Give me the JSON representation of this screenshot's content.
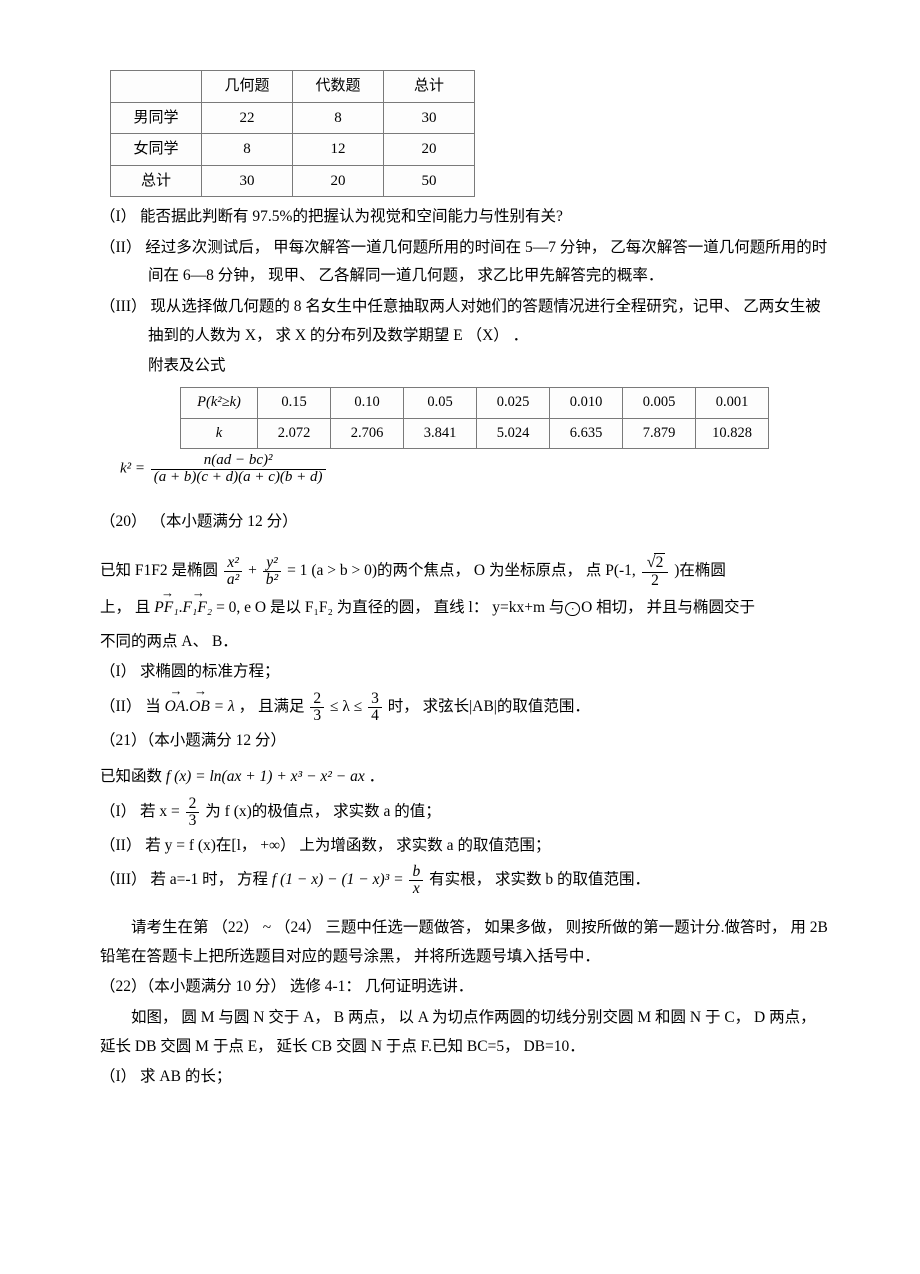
{
  "table1": {
    "headers": [
      "",
      "几何题",
      "代数题",
      "总计"
    ],
    "rows": [
      [
        "男同学",
        "22",
        "8",
        "30"
      ],
      [
        "女同学",
        "8",
        "12",
        "20"
      ],
      [
        "总计",
        "30",
        "20",
        "50"
      ]
    ]
  },
  "q_I": "（I）  能否据此判断有 97.5%的把握认为视觉和空间能力与性别有关?",
  "q_II": "（II）  经过多次测试后，  甲每次解答一道几何题所用的时间在 5—7 分钟，  乙每次解答一道几何题所用的时间在 6—8 分钟，  现甲、  乙各解同一道几何题，  求乙比甲先解答完的概率．",
  "q_III": "（III）  现从选择做几何题的 8 名女生中任意抽取两人对她们的答题情况进行全程研究，记甲、  乙两女生被抽到的人数为 X，  求 X 的分布列及数学期望 E  （X）  ．",
  "appendix_label": "附表及公式",
  "table2": {
    "row1_label": "P(k²≥k)",
    "row1": [
      "0.15",
      "0.10",
      "0.05",
      "0.025",
      "0.010",
      "0.005",
      "0.001"
    ],
    "row2_label": "k",
    "row2": [
      "2.072",
      "2.706",
      "3.841",
      "5.024",
      "6.635",
      "7.879",
      "10.828"
    ]
  },
  "k2_left": "k² =",
  "k2_num": "n(ad − bc)²",
  "k2_den": "(a + b)(c + d)(a + c)(b + d)",
  "q20_head": "（20）  （本小题满分 12 分）",
  "q20_l1_a": "已知 F1F2 是椭圆",
  "q20_l1_b": "(a > b > 0)的两个焦点，  O 为坐标原点，  点  P(-1,",
  "q20_l1_c": ")在椭圆",
  "q20_l2_a": "上，  且",
  "q20_l2_b": "= 0, e O 是以 F₁F₂ 为直径的圆，  直线 l：  y=kx+m 与",
  "q20_l2_b2": "O 相切，  并且与椭圆交于",
  "q20_l2_c": "不同的两点 A、  B．",
  "q20_I": "（I）  求椭圆的标准方程；",
  "q20_II_a": "（II）  当 ",
  "q20_II_b": "，  且满足",
  "q20_II_c": "时，  求弦长|AB|的取值范围．",
  "q21_head": "（21）（本小题满分 12 分）",
  "q21_l1_a": "已知函数 ",
  "q21_l1_b": " ．",
  "q21_fx": "f (x) = ln(ax + 1) + x³ − x² − ax",
  "q21_I_a": "（I）  若  x = ",
  "q21_I_b": "为  f (x)的极值点，  求实数 a 的值；",
  "q21_II": "（II）  若  y = f (x)在[l，  +∞）  上为增函数，  求实数 a 的取值范围；",
  "q21_III_a": "（III）  若 a=-1 时，  方程 ",
  "q21_III_mid": "f (1 − x) − (1 − x)³ =",
  "q21_III_b": "有实根，  求实数 b 的取值范围．",
  "post_a": "请考生在第  （22）  ~  （24）  三题中任选一题做答，  如果多做，  则按所做的第一题计分.做答时，  用 2B 铅笔在答题卡上把所选题目对应的题号涂黑，  并将所选题号填入括号中．",
  "q22_head": "（22）（本小题满分 10 分）  选修 4-1：  几何证明选讲．",
  "q22_a": "如图，  圆 M 与圆 N 交于 A，  B 两点，  以 A 为切点作两圆的切线分别交圆 M 和圆 N 于 C，  D 两点，延长 DB 交圆 M 于点 E，  延长 CB 交圆 N 于点 F.已知 BC=5，  DB=10．",
  "q22_I": "（I）  求 AB 的长；",
  "frac_x2": "x²",
  "frac_a2": "a²",
  "frac_y2": "y²",
  "frac_b2": "b²",
  "eq1": "= 1",
  "root2": "2",
  "two": "2",
  "three": "3",
  "four": "4",
  "bx": "b",
  "xden": "x",
  "vec_PF1": "PF₁",
  "vec_F1F2": "F₁F₂",
  "vec_OA": "OA",
  "vec_OB": "OB",
  "lambda": "= λ",
  "plus": "+",
  "leq": "≤ λ ≤"
}
